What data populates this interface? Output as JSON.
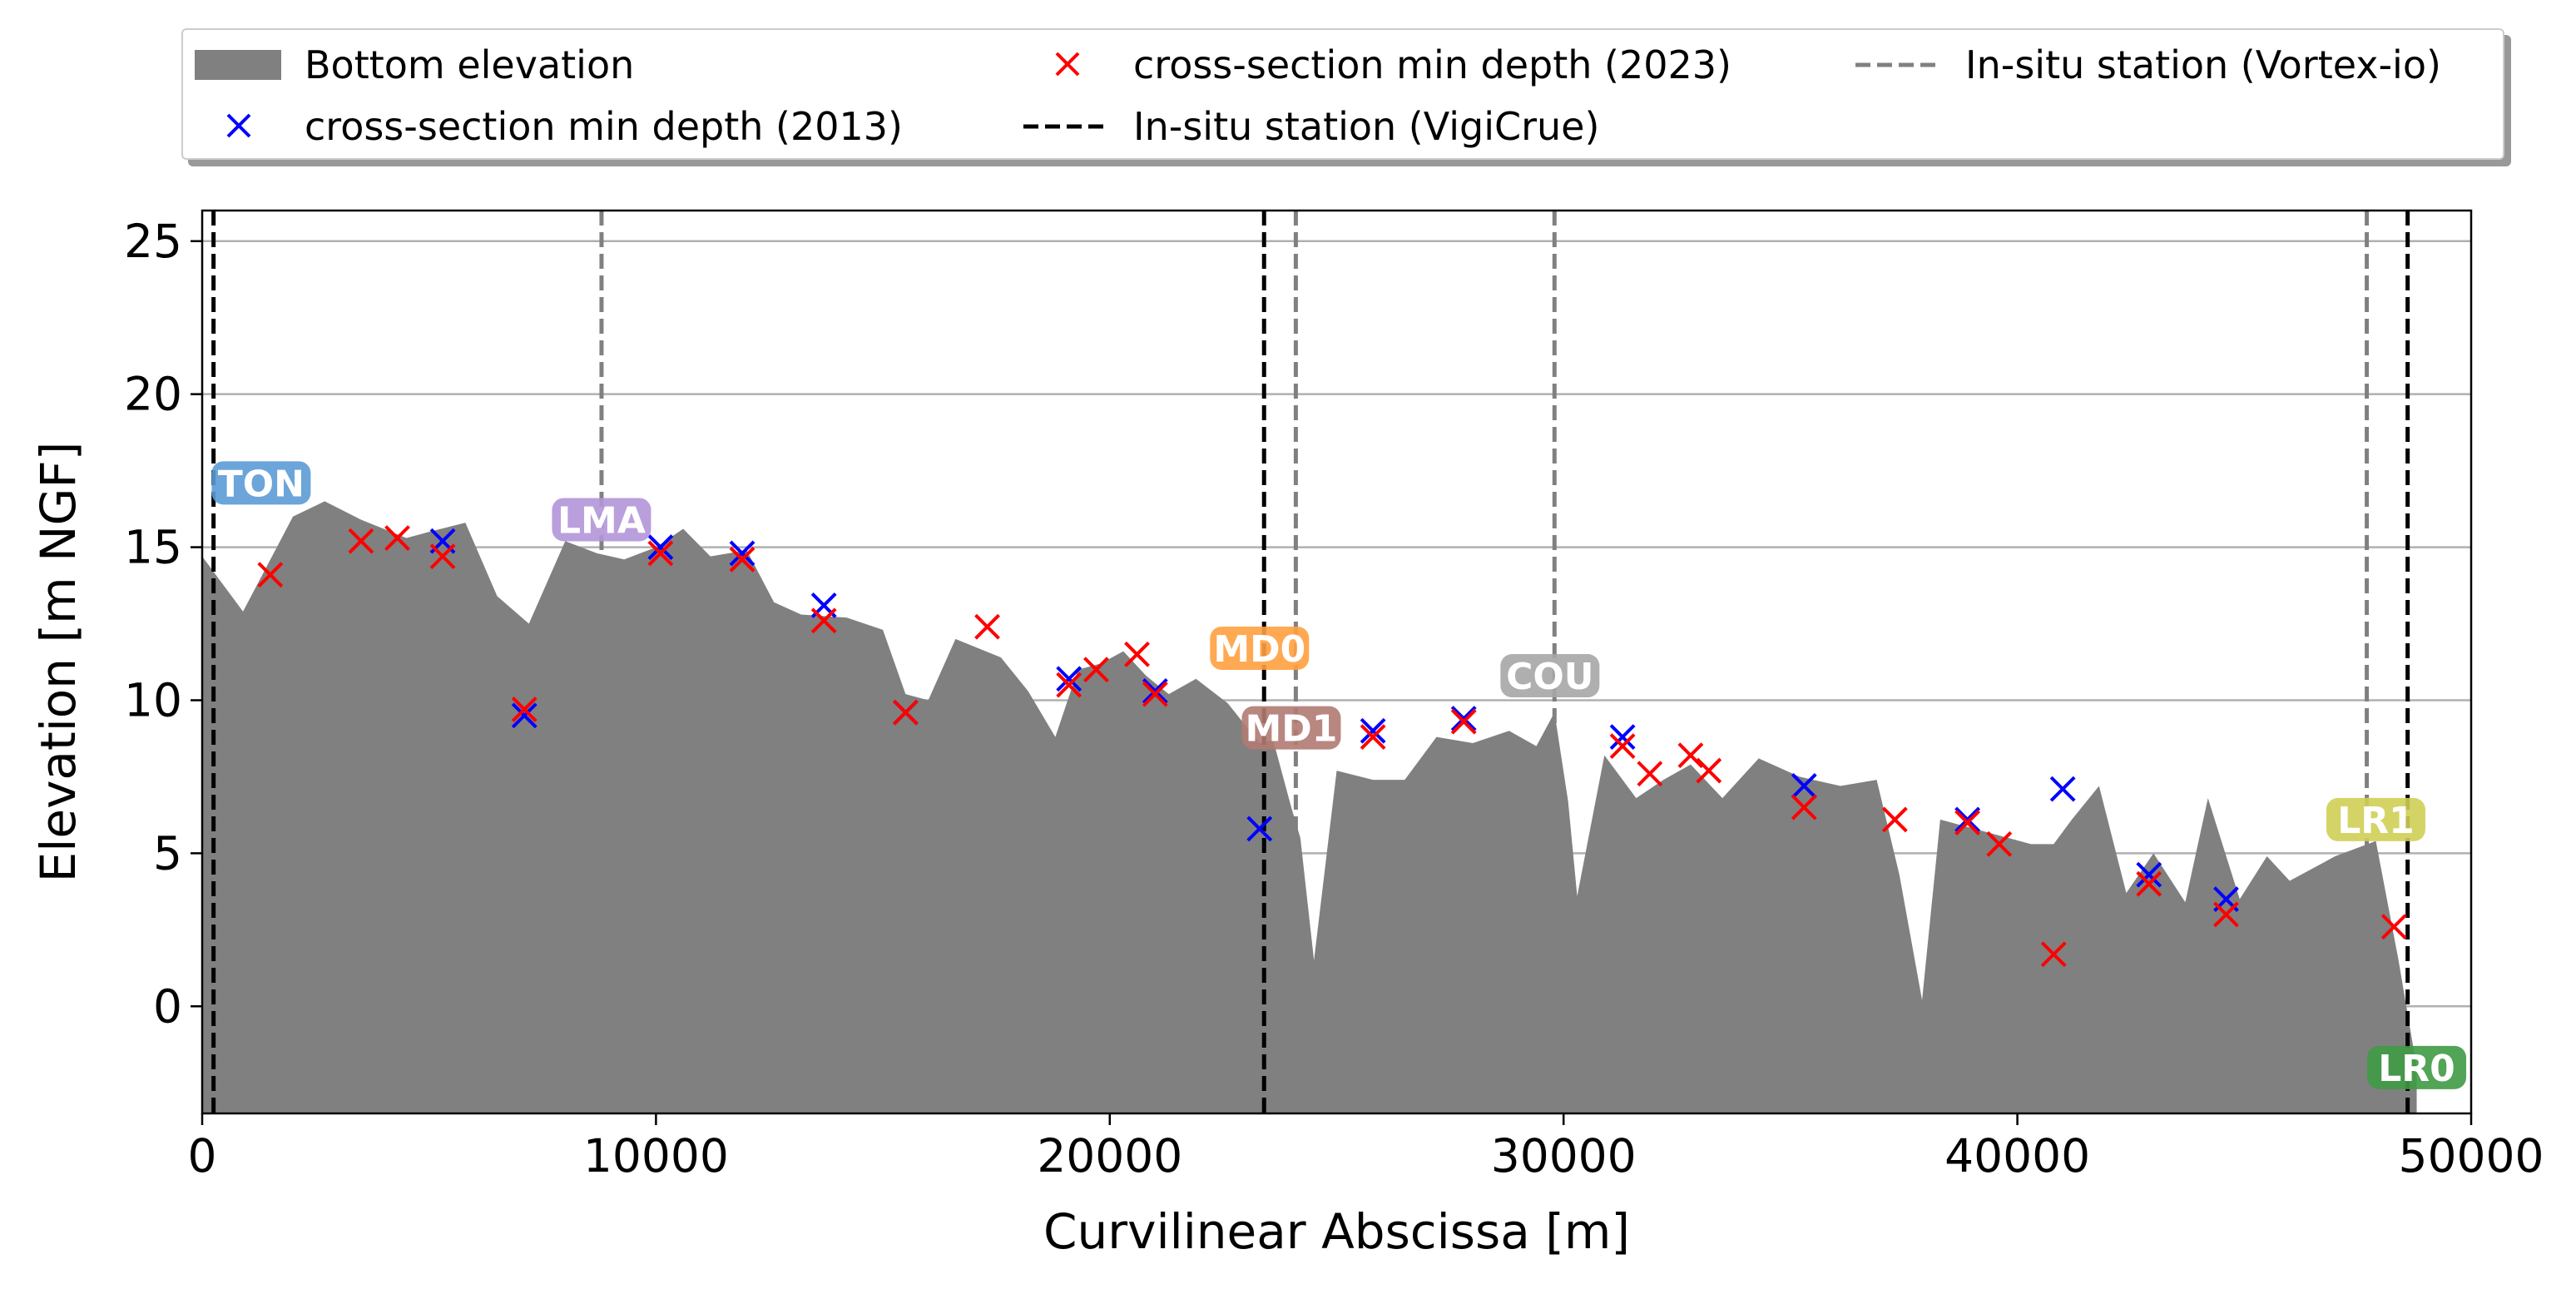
{
  "chart_data": {
    "type": "area",
    "xlabel": "Curvilinear Abscissa [m]",
    "ylabel": "Elevation [m NGF]",
    "xlim": [
      0,
      50000
    ],
    "ylim": [
      -3.5,
      26
    ],
    "xticks": [
      0,
      10000,
      20000,
      30000,
      40000,
      50000
    ],
    "yticks": [
      0,
      5,
      10,
      15,
      20,
      25
    ],
    "xtick_labels": [
      "0",
      "10000",
      "20000",
      "30000",
      "40000",
      "50000"
    ],
    "ytick_labels": [
      "0",
      "5",
      "10",
      "15",
      "20",
      "25"
    ],
    "grid": "y",
    "legend_position": "top, above plot",
    "legend": [
      {
        "label": "Bottom elevation",
        "marker": "patch",
        "color": "#808080"
      },
      {
        "label": "cross-section min depth (2013)",
        "marker": "x",
        "color": "#0000ff"
      },
      {
        "label": "cross-section min depth (2023)",
        "marker": "x",
        "color": "#ff0000"
      },
      {
        "label": "In-situ station (VigiCrue)",
        "marker": "dashed-line",
        "color": "#000000"
      },
      {
        "label": "In-situ station (Vortex-io)",
        "marker": "dashed-line",
        "color": "#808080"
      }
    ],
    "bottom_elevation": {
      "color": "#808080",
      "x": [
        0,
        900,
        2000,
        2700,
        3500,
        4500,
        5000,
        5800,
        6500,
        7200,
        8000,
        8700,
        9300,
        10000,
        10600,
        11200,
        12000,
        12600,
        13200,
        14200,
        15000,
        15500,
        16000,
        16600,
        17600,
        18200,
        18800,
        19300,
        19800,
        20300,
        20800,
        21300,
        21900,
        22600,
        23300,
        23600,
        24000,
        24200,
        24500,
        25000,
        25800,
        26500,
        27200,
        28000,
        28800,
        29400,
        29800,
        30100,
        30300,
        30900,
        31600,
        32200,
        32800,
        33500,
        34300,
        35200,
        36100,
        36900,
        37400,
        37900,
        38300,
        39300,
        40300,
        40800,
        41200,
        41800,
        42400,
        43000,
        43700,
        44200,
        44900,
        45500,
        46000,
        47000,
        47900,
        48400,
        48800
      ],
      "y": [
        14.7,
        12.9,
        16.0,
        16.5,
        15.9,
        15.3,
        15.5,
        15.8,
        13.4,
        12.5,
        15.2,
        14.8,
        14.6,
        15.0,
        15.6,
        14.7,
        14.9,
        13.2,
        12.8,
        12.7,
        12.3,
        10.2,
        10.0,
        12.0,
        11.4,
        10.3,
        8.8,
        11.0,
        11.2,
        11.6,
        10.8,
        10.2,
        10.7,
        9.9,
        8.6,
        8.7,
        6.5,
        5.5,
        1.5,
        7.7,
        7.4,
        7.4,
        8.8,
        8.6,
        9.0,
        8.5,
        9.6,
        6.7,
        3.6,
        8.2,
        6.8,
        7.4,
        7.9,
        6.8,
        8.1,
        7.5,
        7.2,
        7.4,
        4.3,
        0.2,
        6.1,
        5.7,
        5.3,
        5.3,
        6.1,
        7.2,
        3.7,
        5.0,
        3.4,
        6.8,
        3.5,
        4.9,
        4.1,
        4.9,
        5.4,
        1.5,
        -2.0
      ]
    },
    "series": [
      {
        "name": "cross-section min depth (2013)",
        "color": "#0000ff",
        "x": [
          5300,
          7100,
          10100,
          11900,
          13700,
          15500,
          19100,
          21000,
          23300,
          25800,
          27800,
          31300,
          35300,
          38900,
          41000,
          42900,
          44600
        ],
        "y": [
          15.2,
          9.5,
          15.0,
          14.8,
          13.1,
          9.6,
          10.7,
          10.3,
          5.8,
          9.0,
          9.4,
          8.8,
          7.2,
          6.1,
          7.1,
          4.3,
          3.5
        ]
      },
      {
        "name": "cross-section min depth (2023)",
        "color": "#ff0000",
        "x": [
          1500,
          3500,
          4300,
          5300,
          7100,
          10100,
          11900,
          13700,
          15500,
          17300,
          19100,
          19700,
          20600,
          21000,
          25800,
          27800,
          31300,
          31900,
          32800,
          33200,
          35300,
          37300,
          38900,
          39600,
          40800,
          42900,
          44600,
          48300
        ],
        "y": [
          14.1,
          15.2,
          15.3,
          14.7,
          9.7,
          14.8,
          14.6,
          12.6,
          9.6,
          12.4,
          10.5,
          11.0,
          11.5,
          10.2,
          8.8,
          9.3,
          8.5,
          7.6,
          8.2,
          7.7,
          6.5,
          6.1,
          6.0,
          5.3,
          1.7,
          4.0,
          3.0,
          2.6
        ]
      }
    ],
    "stations_vigicrue": {
      "color": "#000000",
      "x": [
        250,
        23400,
        48600
      ]
    },
    "stations_vortex": {
      "color": "#808080",
      "x": [
        8800,
        24100,
        29800,
        47700
      ]
    },
    "annotations": [
      {
        "text": "TON",
        "x": 1300,
        "y": 17.1,
        "color": "#5b9bd5"
      },
      {
        "text": "LMA",
        "x": 8800,
        "y": 15.9,
        "color": "#b395d9"
      },
      {
        "text": "MD0",
        "x": 23300,
        "y": 11.7,
        "color": "#ffa040"
      },
      {
        "text": "MD1",
        "x": 24000,
        "y": 9.1,
        "color": "#b07a72"
      },
      {
        "text": "COU",
        "x": 29700,
        "y": 10.8,
        "color": "#a6a6a6"
      },
      {
        "text": "LR1",
        "x": 47900,
        "y": 6.1,
        "color": "#cfcf55"
      },
      {
        "text": "LR0",
        "x": 48800,
        "y": -2.0,
        "color": "#3f9a44"
      }
    ]
  }
}
